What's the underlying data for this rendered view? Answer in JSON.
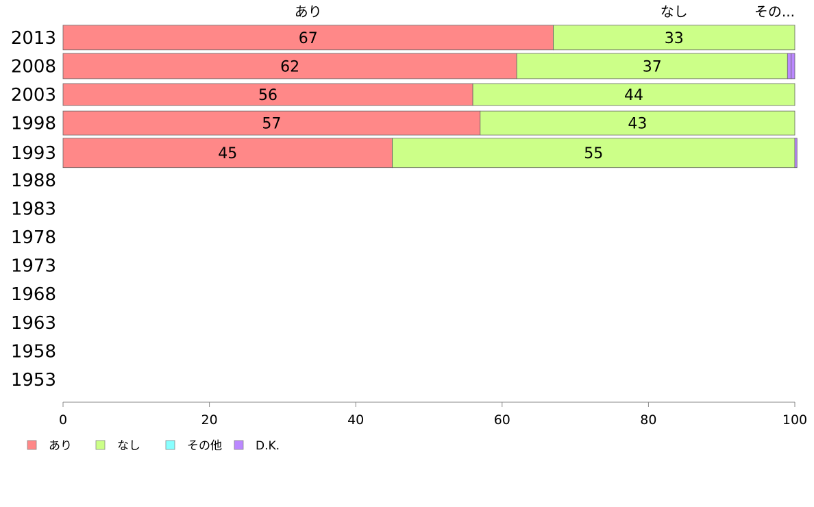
{
  "chart_data": {
    "type": "bar",
    "orientation": "horizontal",
    "stacked": true,
    "title": "",
    "xlabel": "",
    "ylabel": "",
    "xlim": [
      0,
      100
    ],
    "x_ticks": [
      0,
      20,
      40,
      60,
      80,
      100
    ],
    "grid": false,
    "legend_position": "bottom-left",
    "categories": [
      "2013",
      "2008",
      "2003",
      "1998",
      "1993",
      "1988",
      "1983",
      "1978",
      "1973",
      "1968",
      "1963",
      "1958",
      "1953"
    ],
    "category_heights": [
      36,
      37,
      32,
      35,
      43,
      0,
      0,
      0,
      0,
      0,
      0,
      0,
      0
    ],
    "top_labels": [
      "あり",
      "なし",
      "その..."
    ],
    "series": [
      {
        "name": "あり",
        "color": "#ff8888",
        "values": [
          67,
          62,
          56,
          57,
          45,
          null,
          null,
          null,
          null,
          null,
          null,
          null,
          null
        ]
      },
      {
        "name": "なし",
        "color": "#ccff88",
        "values": [
          33,
          37,
          44,
          43,
          55,
          null,
          null,
          null,
          null,
          null,
          null,
          null,
          null
        ]
      },
      {
        "name": "その他",
        "color": "#88ffff",
        "values": [
          0,
          0,
          0,
          0,
          0,
          null,
          null,
          null,
          null,
          null,
          null,
          null,
          null
        ]
      },
      {
        "name": "D.K.",
        "color": "#bb88ff",
        "values": [
          0,
          0.5,
          0,
          0,
          0.3,
          null,
          null,
          null,
          null,
          null,
          null,
          null,
          null
        ]
      }
    ],
    "value_labels": [
      [
        "67",
        "33"
      ],
      [
        "62",
        "37"
      ],
      [
        "56",
        "44"
      ],
      [
        "57",
        "43"
      ],
      [
        "45",
        "55"
      ],
      [],
      [],
      [],
      [],
      [],
      [],
      [],
      []
    ]
  }
}
